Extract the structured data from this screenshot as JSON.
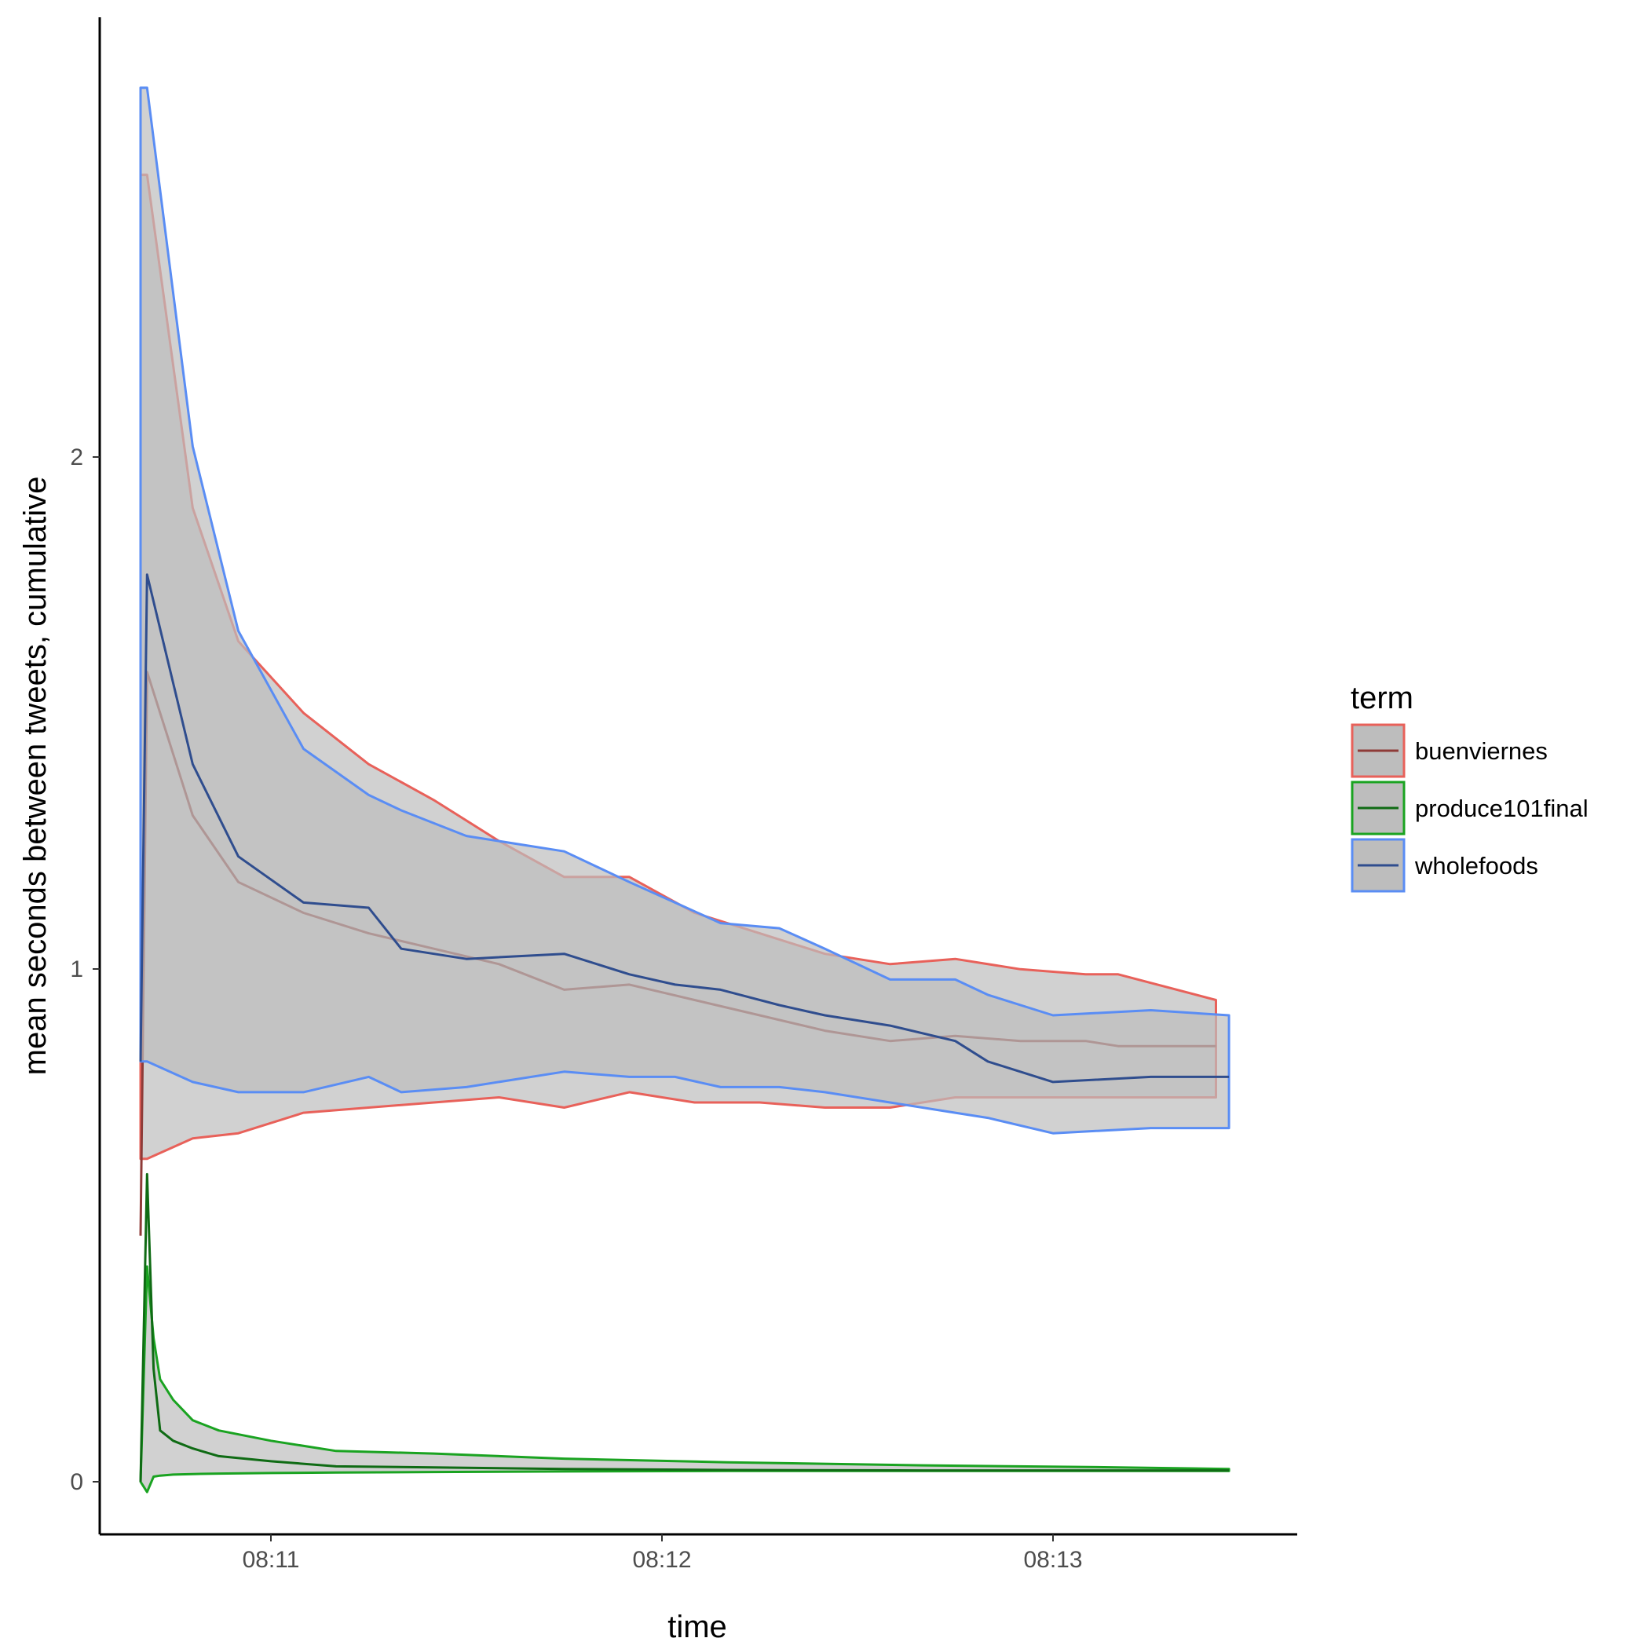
{
  "chart_data": {
    "type": "area",
    "xlabel": "time",
    "ylabel": "mean seconds between tweets, cumulative",
    "x_ticks": [
      "08:11",
      "08:12",
      "08:13"
    ],
    "y_ticks": [
      "0",
      "1",
      "2"
    ],
    "xlim": [
      "08:10:35",
      "08:13:40"
    ],
    "ylim": [
      -0.14,
      2.85
    ],
    "grid": false,
    "legend_title": "term",
    "legend_position": "right",
    "series": [
      {
        "name": "buenviernes",
        "color": "#e8615a",
        "line_color": "#8e3b38",
        "ribbon_fill": "#bdbdbd",
        "x": [
          "08:10:40",
          "08:10:41",
          "08:10:48",
          "08:10:55",
          "08:11:05",
          "08:11:15",
          "08:11:25",
          "08:11:35",
          "08:11:45",
          "08:11:55",
          "08:12:05",
          "08:12:15",
          "08:12:25",
          "08:12:35",
          "08:12:45",
          "08:12:55",
          "08:13:05",
          "08:13:10",
          "08:13:25"
        ],
        "upper": [
          2.55,
          2.55,
          1.9,
          1.64,
          1.5,
          1.4,
          1.33,
          1.25,
          1.18,
          1.18,
          1.11,
          1.07,
          1.03,
          1.01,
          1.02,
          1.0,
          0.99,
          0.99,
          0.94
        ],
        "mean": [
          0.48,
          1.58,
          1.3,
          1.17,
          1.11,
          1.07,
          1.04,
          1.01,
          0.96,
          0.97,
          0.94,
          0.91,
          0.88,
          0.86,
          0.87,
          0.86,
          0.86,
          0.85,
          0.85
        ],
        "lower": [
          0.63,
          0.63,
          0.67,
          0.68,
          0.72,
          0.73,
          0.74,
          0.75,
          0.73,
          0.76,
          0.74,
          0.74,
          0.73,
          0.73,
          0.75,
          0.75,
          0.75,
          0.75,
          0.75
        ]
      },
      {
        "name": "produce101final",
        "color": "#1aa321",
        "line_color": "#0f6b14",
        "ribbon_fill": "#bdbdbd",
        "x": [
          "08:10:40",
          "08:10:41",
          "08:10:42",
          "08:10:43",
          "08:10:45",
          "08:10:48",
          "08:10:52",
          "08:11:00",
          "08:11:10",
          "08:11:25",
          "08:11:45",
          "08:12:10",
          "08:12:40",
          "08:13:10",
          "08:13:27"
        ],
        "upper": [
          0.0,
          0.42,
          0.28,
          0.2,
          0.16,
          0.12,
          0.1,
          0.08,
          0.06,
          0.055,
          0.045,
          0.038,
          0.032,
          0.028,
          0.025
        ],
        "mean": [
          0.0,
          0.6,
          0.22,
          0.1,
          0.08,
          0.065,
          0.05,
          0.04,
          0.03,
          0.028,
          0.025,
          0.023,
          0.022,
          0.022,
          0.022
        ],
        "lower": [
          0.0,
          -0.02,
          0.01,
          0.012,
          0.014,
          0.015,
          0.016,
          0.017,
          0.018,
          0.019,
          0.02,
          0.021,
          0.021,
          0.021,
          0.021
        ]
      },
      {
        "name": "wholefoods",
        "color": "#5a8df4",
        "line_color": "#2f4d8e",
        "ribbon_fill": "#bdbdbd",
        "x": [
          "08:10:40",
          "08:10:41",
          "08:10:48",
          "08:10:55",
          "08:11:05",
          "08:11:15",
          "08:11:20",
          "08:11:30",
          "08:11:45",
          "08:11:55",
          "08:12:02",
          "08:12:09",
          "08:12:18",
          "08:12:25",
          "08:12:35",
          "08:12:45",
          "08:12:50",
          "08:13:00",
          "08:13:15",
          "08:13:27"
        ],
        "upper": [
          2.72,
          2.72,
          2.02,
          1.66,
          1.43,
          1.34,
          1.31,
          1.26,
          1.23,
          1.17,
          1.13,
          1.09,
          1.08,
          1.04,
          0.98,
          0.98,
          0.95,
          0.91,
          0.92,
          0.91
        ],
        "mean": [
          0.82,
          1.77,
          1.4,
          1.22,
          1.13,
          1.12,
          1.04,
          1.02,
          1.03,
          0.99,
          0.97,
          0.96,
          0.93,
          0.91,
          0.89,
          0.86,
          0.82,
          0.78,
          0.79,
          0.79
        ],
        "lower": [
          0.82,
          0.82,
          0.78,
          0.76,
          0.76,
          0.79,
          0.76,
          0.77,
          0.8,
          0.79,
          0.79,
          0.77,
          0.77,
          0.76,
          0.74,
          0.72,
          0.71,
          0.68,
          0.69,
          0.69
        ]
      }
    ]
  }
}
